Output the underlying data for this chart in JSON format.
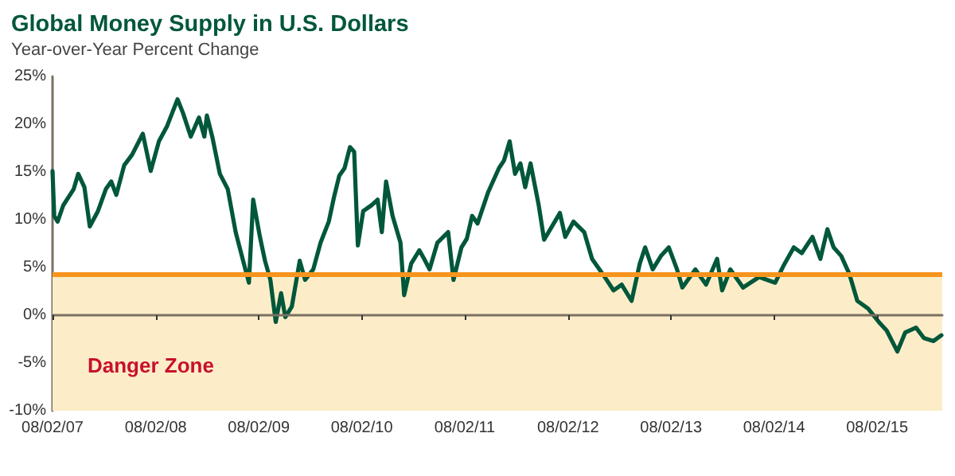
{
  "chart_data": {
    "type": "line",
    "title": "Global Money Supply in U.S. Dollars",
    "subtitle": "Year-over-Year Percent Change",
    "x": [
      "2007-08-02",
      "2007-08-08",
      "2007-08-20",
      "2007-09-09",
      "2007-10-16",
      "2007-11-01",
      "2007-11-23",
      "2007-12-12",
      "2008-01-10",
      "2008-02-07",
      "2008-02-26",
      "2008-03-15",
      "2008-04-12",
      "2008-05-10",
      "2008-06-17",
      "2008-07-15",
      "2008-08-13",
      "2008-09-11",
      "2008-10-18",
      "2008-11-06",
      "2008-12-04",
      "2009-01-02",
      "2009-01-21",
      "2009-01-30",
      "2009-02-18",
      "2009-03-17",
      "2009-04-14",
      "2009-05-12",
      "2009-06-10",
      "2009-06-28",
      "2009-07-13",
      "2009-08-06",
      "2009-08-24",
      "2009-09-12",
      "2009-10-01",
      "2009-10-20",
      "2009-11-04",
      "2009-11-27",
      "2009-12-25",
      "2010-01-13",
      "2010-02-11",
      "2010-03-09",
      "2010-04-07",
      "2010-04-25",
      "2010-05-14",
      "2010-06-02",
      "2010-06-21",
      "2010-07-06",
      "2010-07-19",
      "2010-08-07",
      "2010-09-05",
      "2010-09-27",
      "2010-10-12",
      "2010-10-27",
      "2010-11-19",
      "2010-12-17",
      "2010-12-30",
      "2011-01-24",
      "2011-02-22",
      "2011-03-11",
      "2011-03-30",
      "2011-04-27",
      "2011-06-04",
      "2011-06-23",
      "2011-07-21",
      "2011-08-09",
      "2011-08-28",
      "2011-09-16",
      "2011-10-24",
      "2011-12-01",
      "2011-12-19",
      "2012-01-08",
      "2012-01-27",
      "2012-02-15",
      "2012-03-03",
      "2012-03-22",
      "2012-04-20",
      "2012-05-09",
      "2012-06-06",
      "2012-07-04",
      "2012-07-23",
      "2012-08-21",
      "2012-09-28",
      "2012-10-26",
      "2012-12-03",
      "2013-01-10",
      "2013-02-08",
      "2013-03-15",
      "2013-04-13",
      "2013-05-02",
      "2013-05-29",
      "2013-06-27",
      "2013-07-25",
      "2013-08-23",
      "2013-09-11",
      "2013-10-27",
      "2013-12-04",
      "2014-01-12",
      "2014-01-30",
      "2014-02-28",
      "2014-04-14",
      "2014-06-10",
      "2014-08-06",
      "2014-09-03",
      "2014-10-11",
      "2014-11-08",
      "2014-12-16",
      "2015-01-13",
      "2015-02-07",
      "2015-03-01",
      "2015-03-28",
      "2015-04-26",
      "2015-05-24",
      "2015-07-01",
      "2015-08-08",
      "2015-09-05",
      "2015-10-13",
      "2015-11-10",
      "2015-12-18",
      "2016-01-15",
      "2016-02-18",
      "2016-03-17"
    ],
    "series": [
      {
        "color": "#00573a",
        "values": [
          15.1,
          10.4,
          9.8,
          11.5,
          13.2,
          14.8,
          13.4,
          9.3,
          10.9,
          13.2,
          14.0,
          12.6,
          15.7,
          16.8,
          19.0,
          15.1,
          18.2,
          19.8,
          22.6,
          21.2,
          18.7,
          20.7,
          18.7,
          20.9,
          18.7,
          14.8,
          13.2,
          8.7,
          5.4,
          3.4,
          12.1,
          8.2,
          5.7,
          3.7,
          -0.7,
          2.3,
          -0.2,
          0.9,
          5.7,
          3.7,
          4.8,
          7.6,
          9.8,
          12.3,
          14.6,
          15.4,
          17.6,
          17.1,
          7.3,
          10.9,
          11.5,
          12.1,
          8.7,
          14.0,
          10.4,
          7.6,
          2.1,
          5.4,
          6.8,
          5.9,
          4.8,
          7.6,
          8.7,
          3.7,
          7.1,
          8.0,
          10.4,
          9.6,
          12.9,
          15.4,
          16.2,
          18.2,
          14.8,
          15.9,
          13.4,
          15.9,
          11.5,
          7.9,
          9.3,
          10.7,
          8.2,
          9.8,
          8.7,
          5.9,
          4.3,
          2.6,
          3.2,
          1.5,
          5.4,
          7.1,
          4.8,
          6.2,
          7.1,
          4.8,
          2.9,
          4.8,
          3.2,
          5.9,
          2.6,
          4.8,
          2.9,
          4.0,
          3.4,
          5.1,
          7.1,
          6.5,
          8.2,
          5.9,
          9.0,
          7.1,
          6.2,
          4.3,
          1.5,
          0.7,
          -0.7,
          -1.6,
          -3.8,
          -1.8,
          -1.3,
          -2.4,
          -2.7,
          -2.1
        ]
      }
    ],
    "xlim": [
      "2007-08-02",
      "2016-03-20"
    ],
    "xticks": [
      {
        "value": "2007-08-02",
        "label": "08/02/07"
      },
      {
        "value": "2008-08-02",
        "label": "08/02/08"
      },
      {
        "value": "2009-08-02",
        "label": "08/02/09"
      },
      {
        "value": "2010-08-02",
        "label": "08/02/10"
      },
      {
        "value": "2011-08-02",
        "label": "08/02/11"
      },
      {
        "value": "2012-08-02",
        "label": "08/02/12"
      },
      {
        "value": "2013-08-02",
        "label": "08/02/13"
      },
      {
        "value": "2014-08-02",
        "label": "08/02/14"
      },
      {
        "value": "2015-08-02",
        "label": "08/02/15"
      }
    ],
    "ylim": [
      -10,
      25
    ],
    "yticks": [
      {
        "value": -10,
        "label": "-10%"
      },
      {
        "value": -5,
        "label": "-5%"
      },
      {
        "value": 0,
        "label": "0%"
      },
      {
        "value": 5,
        "label": "5%"
      },
      {
        "value": 10,
        "label": "10%"
      },
      {
        "value": 15,
        "label": "15%"
      },
      {
        "value": 20,
        "label": "20%"
      },
      {
        "value": 25,
        "label": "25%"
      }
    ],
    "bands": [
      {
        "axis": "y",
        "from": -10,
        "to": 4.3,
        "label": "Danger Zone",
        "color": "#fcedc8"
      }
    ],
    "ref_lines": [
      {
        "axis": "y",
        "value": 4.3,
        "color": "#f7941d",
        "line_style": "solid"
      }
    ],
    "marker": "none",
    "line_style": "solid"
  }
}
